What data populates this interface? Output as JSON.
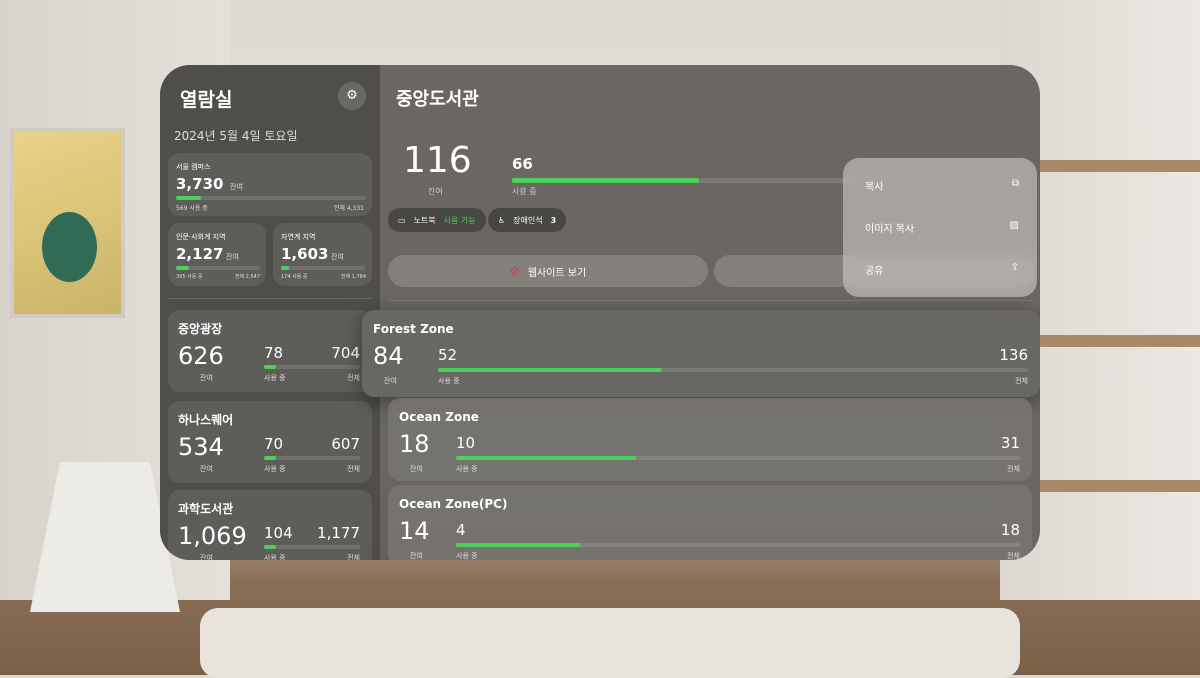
{
  "sidebar": {
    "title": "열람실",
    "date": "2024년 5월 4일 토요일",
    "seoul": {
      "name": "서울 캠퍼스",
      "remain": "3,730",
      "remain_unit": "잔여",
      "used": "569 사용 중",
      "total": "전체 4,331",
      "fill": 0.13
    },
    "humanities": {
      "name": "인문·사회계 지역",
      "remain": "2,127",
      "remain_unit": "잔여",
      "used": "395 사용 중",
      "total": "전체 2,547",
      "fill": 0.16
    },
    "science": {
      "name": "자연계 지역",
      "remain": "1,603",
      "remain_unit": "잔여",
      "used": "174 사용 중",
      "total": "전체 1,784",
      "fill": 0.1
    },
    "libraries": [
      {
        "name": "중앙광장",
        "remain": "626",
        "used": "78",
        "total": "704",
        "fill": 0.11
      },
      {
        "name": "하나스퀘어",
        "remain": "534",
        "used": "70",
        "total": "607",
        "fill": 0.12
      },
      {
        "name": "과학도서관",
        "remain": "1,069",
        "used": "104",
        "total": "1,177",
        "fill": 0.09
      }
    ],
    "remain_label": "잔여",
    "used_label": "사용 중",
    "total_label": "전체"
  },
  "main": {
    "title": "중앙도서관",
    "remain": "116",
    "remain_label": "잔여",
    "used": "66",
    "used_label": "사용 중",
    "fill": 0.36,
    "laptop_label": "노트북",
    "laptop_status": "사용 가능",
    "accessible_label": "장애인석",
    "accessible_count": "3",
    "website_button": "웹사이트 보기",
    "zones": [
      {
        "name": "Forest Zone",
        "remain": "84",
        "used": "52",
        "total": "136",
        "fill": 0.38
      },
      {
        "name": "Ocean Zone",
        "remain": "18",
        "used": "10",
        "total": "31",
        "fill": 0.32
      },
      {
        "name": "Ocean Zone(PC)",
        "remain": "14",
        "used": "4",
        "total": "18",
        "fill": 0.22
      }
    ]
  },
  "context_menu": {
    "items": [
      {
        "label": "복사",
        "icon": "copy-icon"
      },
      {
        "label": "이미지 복사",
        "icon": "image-icon"
      },
      {
        "label": "공유",
        "icon": "share-icon"
      }
    ]
  },
  "colors": {
    "accent": "#4cd05a",
    "safari": "#e0353a"
  }
}
